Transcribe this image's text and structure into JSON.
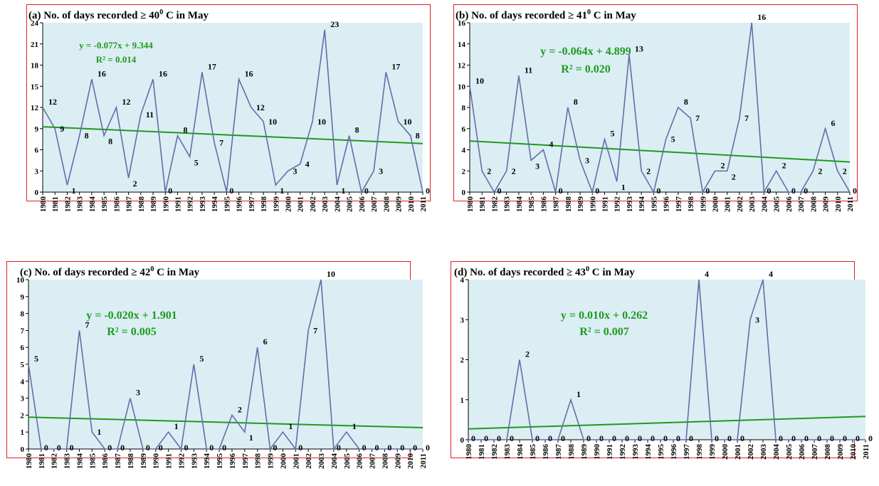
{
  "chart_data": [
    {
      "type": "line",
      "title": "(a) No. of days recorded ≥ 40",
      "title_sup": "0",
      "title_suffix": " C in May",
      "x": [
        "1980",
        "1981",
        "1982",
        "1983",
        "1984",
        "1985",
        "1986",
        "1987",
        "1988",
        "1989",
        "1990",
        "1991",
        "1992",
        "1993",
        "1994",
        "1995",
        "1996",
        "1997",
        "1998",
        "1999",
        "2000",
        "2001",
        "2002",
        "2003",
        "2004",
        "2005",
        "2006",
        "2007",
        "2008",
        "2009",
        "2010",
        "2011"
      ],
      "values": [
        12,
        9,
        1,
        8,
        16,
        8,
        12,
        2,
        11,
        16,
        0,
        8,
        5,
        17,
        7,
        0,
        16,
        12,
        10,
        1,
        3,
        4,
        10,
        23,
        1,
        8,
        0,
        3,
        17,
        10,
        8,
        0
      ],
      "ylim": [
        0,
        24
      ],
      "yticks": [
        0,
        3,
        6,
        9,
        12,
        15,
        18,
        21,
        24
      ],
      "trend": {
        "slope": -0.077,
        "intercept": 9.344
      },
      "equation": "y = -0.077x + 9.344",
      "r2": "R² = 0.014",
      "colors": {
        "series": "#6a6aa8",
        "trend": "#1e9a1e",
        "plot_bg": "#dbeef4",
        "border": "#e02020"
      }
    },
    {
      "type": "line",
      "title": "(b) No. of days recorded ≥ 41",
      "title_sup": "0",
      "title_suffix": " C in May",
      "x": [
        "1980",
        "1981",
        "1982",
        "1983",
        "1984",
        "1985",
        "1986",
        "1987",
        "1988",
        "1989",
        "1990",
        "1991",
        "1992",
        "1993",
        "1994",
        "1995",
        "1996",
        "1997",
        "1998",
        "1999",
        "2000",
        "2001",
        "2002",
        "2003",
        "2004",
        "2005",
        "2006",
        "2007",
        "2008",
        "2009",
        "2010",
        "2011"
      ],
      "values": [
        10,
        2,
        0,
        2,
        11,
        3,
        4,
        0,
        8,
        3,
        0,
        5,
        1,
        13,
        2,
        0,
        5,
        8,
        7,
        0,
        2,
        2,
        7,
        16,
        0,
        2,
        0,
        0,
        2,
        6,
        2,
        0
      ],
      "ylim": [
        0,
        16
      ],
      "yticks": [
        0,
        2,
        4,
        6,
        8,
        10,
        12,
        14,
        16
      ],
      "trend": {
        "slope": -0.064,
        "intercept": 4.899
      },
      "equation": "y = -0.064x + 4.899",
      "r2": "R² = 0.020",
      "colors": {
        "series": "#6a6aa8",
        "trend": "#1e9a1e",
        "plot_bg": "#dbeef4",
        "border": "#e02020"
      }
    },
    {
      "type": "line",
      "title": "(c) No. of days recorded ≥ 42",
      "title_sup": "0",
      "title_suffix": " C in May",
      "x": [
        "1980",
        "1981",
        "1982",
        "1983",
        "1984",
        "1985",
        "1986",
        "1987",
        "1988",
        "1989",
        "1990",
        "1991",
        "1992",
        "1993",
        "1994",
        "1995",
        "1996",
        "1997",
        "1998",
        "1999",
        "2000",
        "2001",
        "2002",
        "2003",
        "2004",
        "2005",
        "2006",
        "2007",
        "2008",
        "2009",
        "2010",
        "2011"
      ],
      "values": [
        5,
        0,
        0,
        0,
        7,
        1,
        0,
        0,
        3,
        0,
        0,
        1,
        0,
        5,
        0,
        0,
        2,
        1,
        6,
        0,
        1,
        0,
        7,
        10,
        0,
        1,
        0,
        0,
        0,
        0,
        0,
        0
      ],
      "ylim": [
        0,
        10
      ],
      "yticks": [
        0,
        1,
        2,
        3,
        4,
        5,
        6,
        7,
        8,
        9,
        10
      ],
      "trend": {
        "slope": -0.02,
        "intercept": 1.901
      },
      "equation": "y = -0.020x + 1.901",
      "r2": "R² = 0.005",
      "colors": {
        "series": "#6a6aa8",
        "trend": "#1e9a1e",
        "plot_bg": "#dbeef4",
        "border": "#e02020"
      }
    },
    {
      "type": "line",
      "title": "(d) No. of days recorded ≥ 43",
      "title_sup": "0",
      "title_suffix": " C in May",
      "x": [
        "1980",
        "1981",
        "1982",
        "1983",
        "1984",
        "1985",
        "1986",
        "1987",
        "1988",
        "1989",
        "1990",
        "1991",
        "1992",
        "1993",
        "1994",
        "1995",
        "1996",
        "1997",
        "1998",
        "1999",
        "2000",
        "2001",
        "2002",
        "2003",
        "2004",
        "2005",
        "2006",
        "2007",
        "2008",
        "2009",
        "2010",
        "2011"
      ],
      "values": [
        0,
        0,
        0,
        0,
        2,
        0,
        0,
        0,
        1,
        0,
        0,
        0,
        0,
        0,
        0,
        0,
        0,
        0,
        4,
        0,
        0,
        0,
        3,
        4,
        0,
        0,
        0,
        0,
        0,
        0,
        0,
        0
      ],
      "ylim": [
        0,
        4
      ],
      "yticks": [
        0,
        1,
        2,
        3,
        4
      ],
      "trend": {
        "slope": 0.01,
        "intercept": 0.262
      },
      "equation": "y = 0.010x + 0.262",
      "r2": "R² = 0.007",
      "colors": {
        "series": "#6a6aa8",
        "trend": "#1e9a1e",
        "plot_bg": "#dbeef4",
        "border": "#e02020"
      }
    }
  ]
}
